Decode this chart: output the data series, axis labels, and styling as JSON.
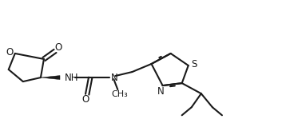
{
  "bg_color": "#ffffff",
  "line_color": "#1a1a1a",
  "line_width": 1.5,
  "font_size": 8.5,
  "xlim": [
    0,
    3.6
  ],
  "ylim": [
    0,
    1.6
  ],
  "figsize": [
    3.63,
    1.64
  ],
  "dpi": 100
}
